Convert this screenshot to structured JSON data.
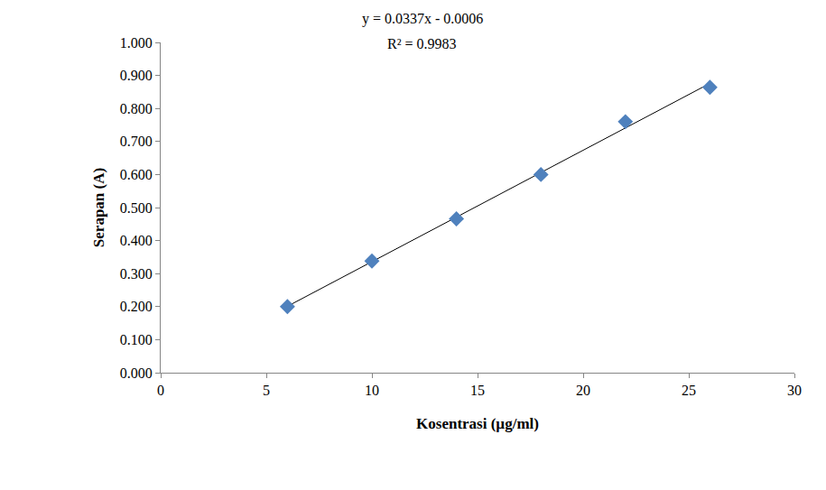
{
  "chart_data": {
    "type": "scatter",
    "x_label": "Kosentrasi (µg/ml)",
    "y_label": "Serapan (A)",
    "annotations": [
      "y = 0.0337x - 0.0006",
      "R² = 0.9983"
    ],
    "series": [
      {
        "type": "scatter",
        "marker": "diamond",
        "color": "#4f81bd",
        "x": [
          6,
          10,
          14,
          18,
          22,
          26
        ],
        "values": [
          0.2,
          0.338,
          0.466,
          0.6,
          0.76,
          0.864
        ]
      },
      {
        "type": "line",
        "line_style": "solid",
        "color": "#000000",
        "x": [
          6,
          26
        ],
        "values": [
          0.201,
          0.876
        ]
      }
    ],
    "xlim": [
      0,
      30
    ],
    "xticks": [
      0,
      5,
      10,
      15,
      20,
      25,
      30
    ],
    "ylim": [
      0,
      1
    ],
    "yticks": [
      {
        "value": 0,
        "label": "0.000"
      },
      {
        "value": 0.1,
        "label": "0.100"
      },
      {
        "value": 0.2,
        "label": "0.200"
      },
      {
        "value": 0.3,
        "label": "0.300"
      },
      {
        "value": 0.4,
        "label": "0.400"
      },
      {
        "value": 0.5,
        "label": "0.500"
      },
      {
        "value": 0.6,
        "label": "0.600"
      },
      {
        "value": 0.7,
        "label": "0.700"
      },
      {
        "value": 0.8,
        "label": "0.800"
      },
      {
        "value": 0.9,
        "label": "0.900"
      },
      {
        "value": 1,
        "label": "1.000"
      }
    ],
    "grid": false
  }
}
